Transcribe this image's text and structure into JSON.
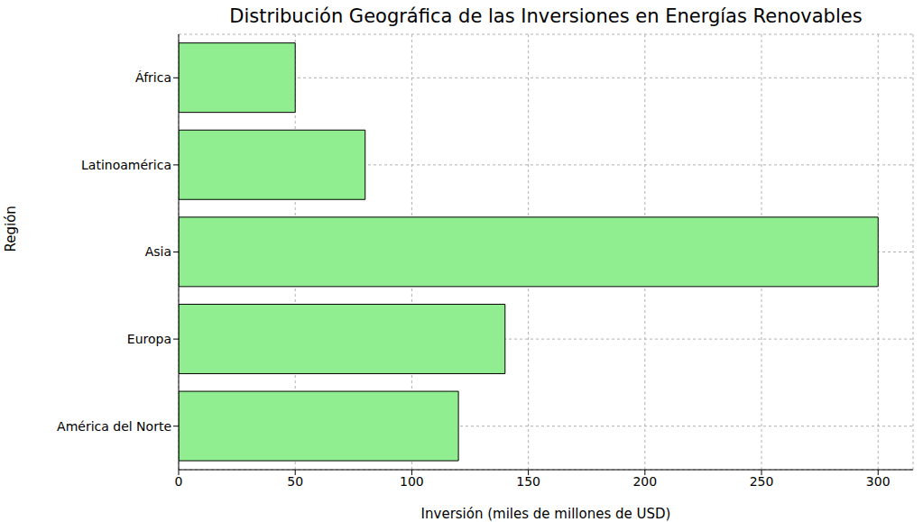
{
  "chart_data": {
    "type": "bar",
    "title": "Distribución Geográfica de las Inversiones en Energías Renovables",
    "orientation": "horizontal",
    "categories": [
      "América del Norte",
      "Europa",
      "Asia",
      "Latinoamérica",
      "África"
    ],
    "values": [
      120,
      140,
      300,
      80,
      50
    ],
    "color": "#90ee90",
    "x_label": "Inversión (miles de millones de USD)",
    "y_label": "Región",
    "xlim": [
      0,
      315
    ],
    "xticks": [
      0,
      50,
      100,
      150,
      200,
      250,
      300
    ],
    "grid": true
  }
}
